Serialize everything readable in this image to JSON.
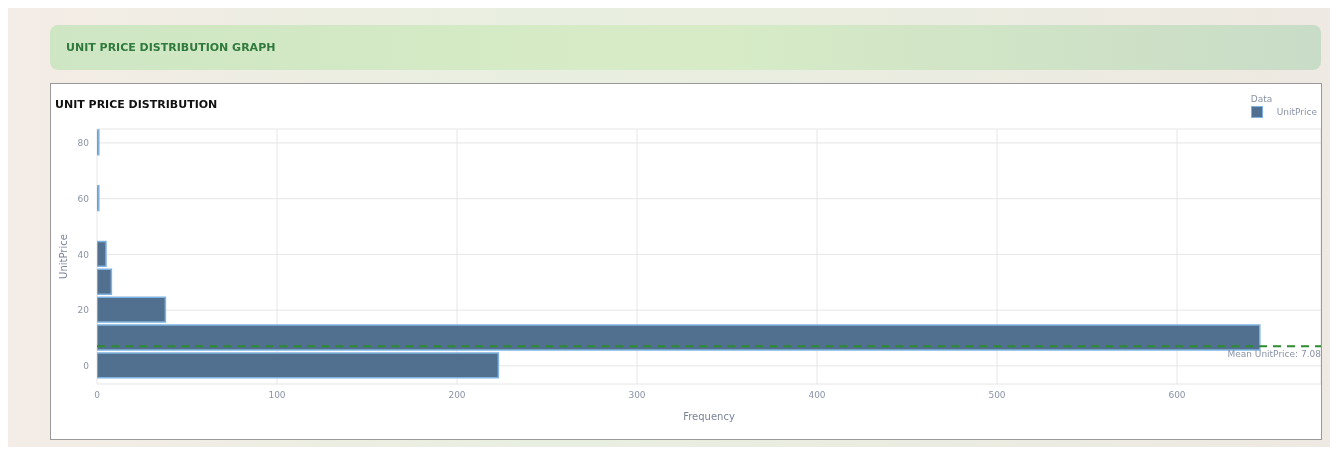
{
  "chart_data": {
    "type": "histogram",
    "orientation": "horizontal",
    "title": "UNIT PRICE DISTRIBUTION GRAPH",
    "subtitle": "UNIT PRICE DISTRIBUTION",
    "xlabel": "Frequency",
    "ylabel": "UnitPrice",
    "legend_title": "Data",
    "legend": "top right",
    "grid": true,
    "bins": [
      -5,
      5,
      15,
      25,
      35,
      45,
      55,
      65,
      75,
      85
    ],
    "series": [
      {
        "name": "UnitPrice",
        "color": "#51708f",
        "values": [
          223,
          646,
          38,
          8,
          5,
          0,
          1,
          0,
          1
        ]
      }
    ],
    "xlim": [
      0,
      680
    ],
    "xticks": [
      0,
      100,
      200,
      300,
      400,
      500,
      600
    ],
    "ylim": [
      -6.5,
      85
    ],
    "yticks": [
      0,
      20,
      40,
      60,
      80
    ],
    "ref_lines": [
      {
        "axis": "y",
        "value": 7.08,
        "label": "Mean UnitPrice: 7.08",
        "color": "#2e8b2e",
        "line_style": "dashed"
      }
    ]
  }
}
